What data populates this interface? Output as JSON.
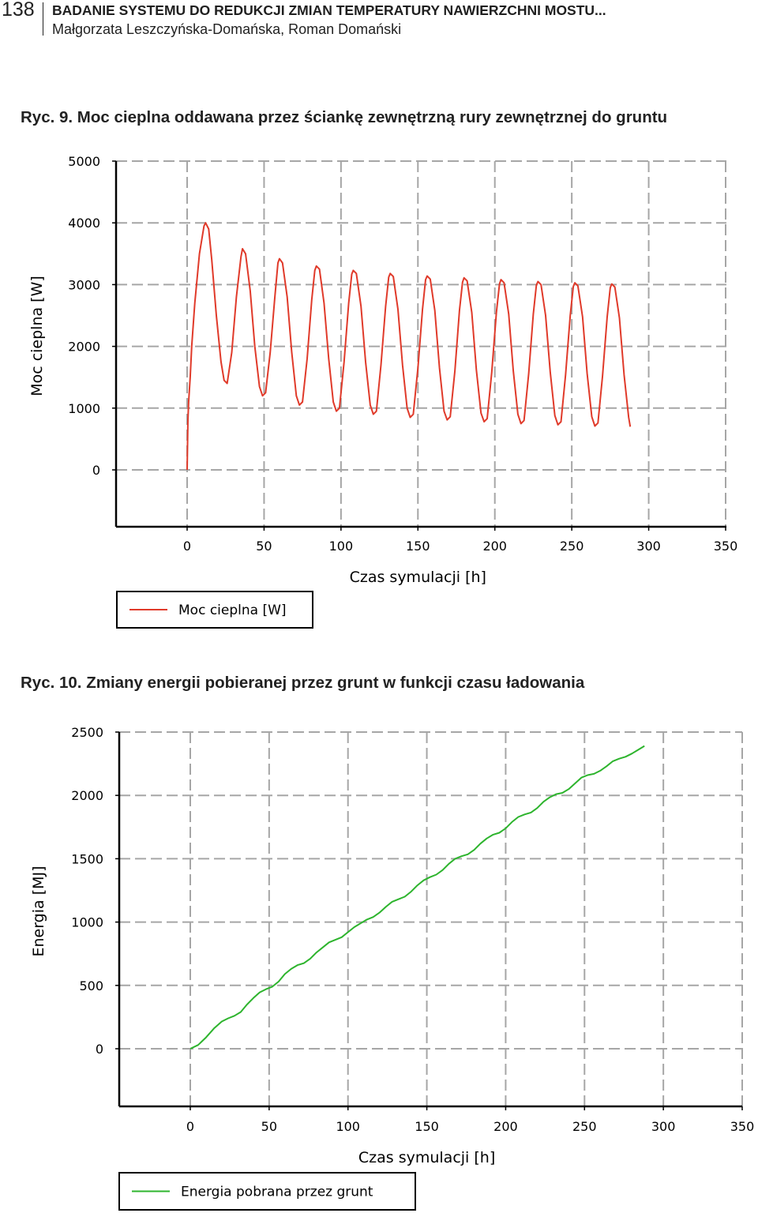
{
  "header": {
    "page_number": "138",
    "running_title": "BADANIE SYSTEMU DO REDUKCJI ZMIAN TEMPERATURY NAWIERZCHNI MOSTU...",
    "authors": "Małgorzata Leszczyńska-Domańska, Roman Domański"
  },
  "figures": [
    {
      "caption": "Ryc. 9. Moc cieplna oddawana przez ściankę zewnętrzną rury zewnętrznej do gruntu"
    },
    {
      "caption": "Ryc. 10. Zmiany energii pobieranej przez grunt w funkcji czasu ładowania"
    }
  ],
  "chart_data": [
    {
      "type": "line",
      "title": "",
      "xlabel": "Czas symulacji [h]",
      "ylabel": "Moc cieplna [W]",
      "xlim": [
        -45,
        350
      ],
      "ylim": [
        -900,
        5000
      ],
      "x_ticks": [
        0,
        50,
        100,
        150,
        200,
        250,
        300,
        350
      ],
      "y_ticks": [
        0,
        1000,
        2000,
        3000,
        4000,
        5000
      ],
      "x_tick_labels": [
        "0",
        "50",
        "100",
        "150",
        "200",
        "250",
        "300",
        "350"
      ],
      "y_tick_labels": [
        "0",
        "1000",
        "2000",
        "3000",
        "4000",
        "5000"
      ],
      "grid": true,
      "legend": "bottom-left, below plot",
      "line_color": "#e03a2a",
      "series": [
        {
          "name": "Moc cieplna [W]",
          "x": [
            0,
            0.5,
            1,
            2,
            3,
            5,
            8,
            11,
            12,
            14,
            16,
            19,
            22,
            24,
            26,
            29,
            32,
            35,
            36,
            38,
            41,
            44,
            47,
            49,
            51,
            54,
            57,
            59,
            60,
            62,
            65,
            68,
            71,
            73,
            75,
            78,
            81,
            83,
            84,
            86,
            89,
            92,
            95,
            97,
            99,
            102,
            105,
            107,
            108,
            110,
            113,
            116,
            119,
            121,
            123,
            126,
            129,
            131,
            132,
            134,
            137,
            140,
            143,
            145,
            147,
            150,
            153,
            155,
            156,
            158,
            161,
            164,
            167,
            169,
            171,
            174,
            177,
            179,
            180,
            182,
            185,
            188,
            191,
            193,
            195,
            198,
            201,
            203,
            204,
            206,
            209,
            212,
            215,
            217,
            219,
            222,
            225,
            227,
            228,
            230,
            233,
            236,
            239,
            241,
            243,
            246,
            249,
            251,
            252,
            254,
            257,
            260,
            263,
            265,
            267,
            270,
            273,
            275,
            276,
            278,
            281,
            284,
            287,
            288
          ],
          "y": [
            0,
            800,
            1100,
            1500,
            2000,
            2700,
            3500,
            3950,
            4000,
            3900,
            3400,
            2500,
            1750,
            1450,
            1400,
            1900,
            2800,
            3450,
            3580,
            3500,
            2900,
            2000,
            1350,
            1200,
            1250,
            1900,
            2800,
            3350,
            3420,
            3350,
            2800,
            1900,
            1200,
            1050,
            1100,
            1800,
            2750,
            3230,
            3300,
            3250,
            2700,
            1800,
            1100,
            950,
            1000,
            1750,
            2700,
            3170,
            3230,
            3180,
            2650,
            1750,
            1050,
            900,
            950,
            1700,
            2650,
            3120,
            3180,
            3130,
            2600,
            1700,
            1000,
            850,
            900,
            1650,
            2600,
            3080,
            3140,
            3090,
            2580,
            1650,
            950,
            810,
            860,
            1600,
            2580,
            3040,
            3110,
            3060,
            2550,
            1620,
            920,
            780,
            830,
            1580,
            2550,
            3010,
            3080,
            3030,
            2520,
            1600,
            900,
            750,
            800,
            1560,
            2520,
            2990,
            3050,
            3000,
            2500,
            1580,
            880,
            730,
            780,
            1540,
            2500,
            2970,
            3030,
            2980,
            2480,
            1560,
            860,
            710,
            760,
            1520,
            2480,
            2950,
            3010,
            2960,
            2460,
            1540,
            850,
            700
          ]
        }
      ]
    },
    {
      "type": "line",
      "title": "",
      "xlabel": "Czas symulacji [h]",
      "ylabel": "Energia [MJ]",
      "xlim": [
        -45,
        350
      ],
      "ylim": [
        -450,
        2500
      ],
      "x_ticks": [
        0,
        50,
        100,
        150,
        200,
        250,
        300,
        350
      ],
      "y_ticks": [
        0,
        500,
        1000,
        1500,
        2000,
        2500
      ],
      "x_tick_labels": [
        "0",
        "50",
        "100",
        "150",
        "200",
        "250",
        "300",
        "350"
      ],
      "y_tick_labels": [
        "0",
        "500",
        "1000",
        "1500",
        "2000",
        "2500"
      ],
      "grid": true,
      "legend": "bottom-left, below plot",
      "line_color": "#2db42d",
      "series": [
        {
          "name": "Energia pobrana przez grunt",
          "x": [
            0,
            5,
            10,
            15,
            20,
            24,
            28,
            32,
            36,
            40,
            44,
            48,
            52,
            56,
            60,
            64,
            68,
            72,
            76,
            80,
            84,
            88,
            92,
            96,
            100,
            104,
            108,
            112,
            116,
            120,
            124,
            128,
            132,
            136,
            140,
            144,
            148,
            152,
            156,
            160,
            164,
            168,
            172,
            176,
            180,
            184,
            188,
            192,
            196,
            200,
            204,
            208,
            212,
            216,
            220,
            224,
            228,
            232,
            236,
            240,
            244,
            248,
            252,
            256,
            260,
            264,
            268,
            272,
            276,
            280,
            284,
            288
          ],
          "y": [
            0,
            30,
            90,
            160,
            215,
            240,
            260,
            290,
            350,
            400,
            445,
            470,
            490,
            530,
            590,
            630,
            660,
            675,
            710,
            760,
            800,
            840,
            860,
            880,
            920,
            960,
            990,
            1020,
            1040,
            1075,
            1120,
            1160,
            1180,
            1200,
            1240,
            1290,
            1330,
            1355,
            1375,
            1410,
            1460,
            1500,
            1520,
            1535,
            1570,
            1620,
            1660,
            1690,
            1705,
            1740,
            1790,
            1830,
            1850,
            1865,
            1900,
            1950,
            1985,
            2010,
            2020,
            2050,
            2095,
            2140,
            2160,
            2170,
            2195,
            2230,
            2270,
            2290,
            2305,
            2330,
            2360,
            2390
          ]
        }
      ]
    }
  ]
}
